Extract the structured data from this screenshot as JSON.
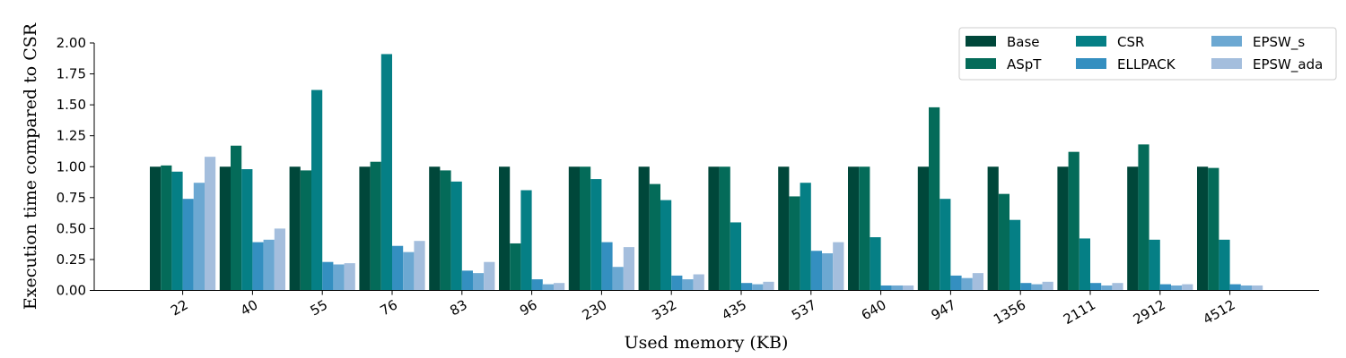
{
  "chart_data": {
    "type": "bar",
    "title": "",
    "xlabel": "Used memory (KB)",
    "ylabel": "Execution time compared to CSR",
    "ylim": [
      0,
      2.0
    ],
    "yticks": [
      "0.00",
      "0.25",
      "0.50",
      "0.75",
      "1.00",
      "1.25",
      "1.50",
      "1.75",
      "2.00"
    ],
    "categories": [
      "22",
      "40",
      "55",
      "76",
      "83",
      "96",
      "230",
      "332",
      "435",
      "537",
      "640",
      "947",
      "1356",
      "2111",
      "2912",
      "4512"
    ],
    "legend_position": "top-right",
    "grid": false,
    "series": [
      {
        "name": "Base",
        "color": "#00473a",
        "values": [
          1.0,
          1.0,
          1.0,
          1.0,
          1.0,
          1.0,
          1.0,
          1.0,
          1.0,
          1.0,
          1.0,
          1.0,
          1.0,
          1.0,
          1.0,
          1.0
        ]
      },
      {
        "name": "ASpT",
        "color": "#046b59",
        "values": [
          1.01,
          1.17,
          0.97,
          1.04,
          0.97,
          0.38,
          1.0,
          0.86,
          1.0,
          0.76,
          1.0,
          1.48,
          0.78,
          1.12,
          1.18,
          0.99
        ]
      },
      {
        "name": "CSR",
        "color": "#057f85",
        "values": [
          0.96,
          0.98,
          1.62,
          1.91,
          0.88,
          0.81,
          0.9,
          0.73,
          0.55,
          0.87,
          0.43,
          0.74,
          0.57,
          0.42,
          0.41,
          0.41
        ]
      },
      {
        "name": "ELLPACK",
        "color": "#348fc0",
        "values": [
          0.74,
          0.39,
          0.23,
          0.36,
          0.16,
          0.09,
          0.39,
          0.12,
          0.06,
          0.32,
          0.04,
          0.12,
          0.06,
          0.06,
          0.05,
          0.05
        ]
      },
      {
        "name": "EPSW_s",
        "color": "#6ca8d2",
        "values": [
          0.87,
          0.41,
          0.21,
          0.31,
          0.14,
          0.05,
          0.19,
          0.09,
          0.05,
          0.3,
          0.04,
          0.1,
          0.05,
          0.04,
          0.04,
          0.04
        ]
      },
      {
        "name": "EPSW_ada",
        "color": "#a4bedd",
        "values": [
          1.08,
          0.5,
          0.22,
          0.4,
          0.23,
          0.06,
          0.35,
          0.13,
          0.07,
          0.39,
          0.04,
          0.14,
          0.07,
          0.06,
          0.05,
          0.04
        ]
      }
    ]
  }
}
